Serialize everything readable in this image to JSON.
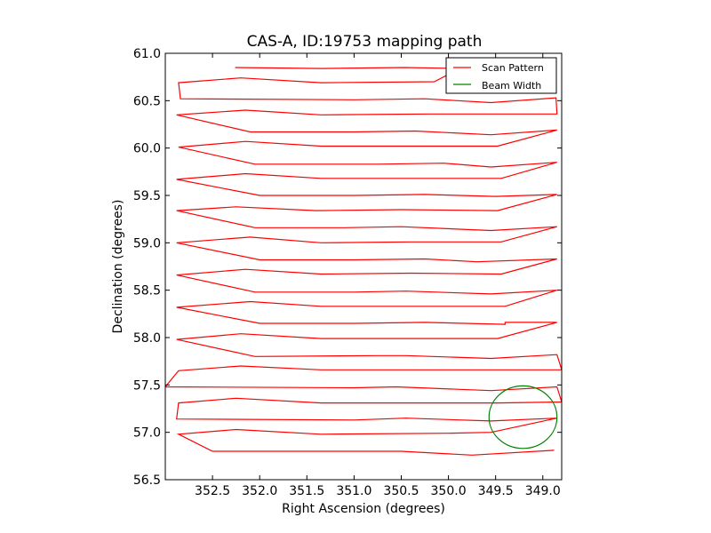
{
  "chart_data": {
    "type": "line",
    "title": "CAS-A, ID:19753 mapping path",
    "xlabel": "Right Ascension (degrees)",
    "ylabel": "Declination (degrees)",
    "xlim": [
      353.0,
      348.8
    ],
    "ylim": [
      56.5,
      61.0
    ],
    "x_inverted": true,
    "xticks": [
      352.5,
      352.0,
      351.5,
      351.0,
      350.5,
      350.0,
      349.5,
      349.0
    ],
    "xtick_labels": [
      "352.5",
      "352.0",
      "351.5",
      "351.0",
      "350.5",
      "350.0",
      "349.5",
      "349.0"
    ],
    "yticks": [
      56.5,
      57.0,
      57.5,
      58.0,
      58.5,
      59.0,
      59.5,
      60.0,
      60.5,
      61.0
    ],
    "ytick_labels": [
      "56.5",
      "57.0",
      "57.5",
      "58.0",
      "58.5",
      "59.0",
      "59.5",
      "60.0",
      "60.5",
      "61.0"
    ],
    "grid": false,
    "legend_position": "top-right",
    "series": [
      {
        "name": "Scan Pattern",
        "color": "#ff0000",
        "points": [
          [
            352.26,
            60.85
          ],
          [
            351.35,
            60.84
          ],
          [
            350.47,
            60.85
          ],
          [
            349.88,
            60.84
          ],
          [
            350.15,
            60.7
          ],
          [
            351.35,
            60.69
          ],
          [
            352.2,
            60.74
          ],
          [
            352.86,
            60.69
          ],
          [
            352.84,
            60.52
          ],
          [
            351.0,
            60.51
          ],
          [
            350.25,
            60.52
          ],
          [
            349.55,
            60.48
          ],
          [
            348.86,
            60.53
          ],
          [
            348.85,
            60.36
          ],
          [
            349.5,
            60.36
          ],
          [
            350.2,
            60.36
          ],
          [
            351.35,
            60.35
          ],
          [
            352.15,
            60.4
          ],
          [
            352.88,
            60.35
          ],
          [
            352.1,
            60.17
          ],
          [
            351.0,
            60.17
          ],
          [
            350.35,
            60.18
          ],
          [
            349.55,
            60.14
          ],
          [
            348.85,
            60.19
          ],
          [
            349.48,
            60.02
          ],
          [
            350.5,
            60.02
          ],
          [
            351.35,
            60.02
          ],
          [
            352.15,
            60.07
          ],
          [
            352.86,
            60.01
          ],
          [
            352.05,
            59.83
          ],
          [
            350.75,
            59.83
          ],
          [
            350.05,
            59.84
          ],
          [
            349.55,
            59.8
          ],
          [
            348.85,
            59.85
          ],
          [
            349.44,
            59.68
          ],
          [
            350.5,
            59.68
          ],
          [
            351.35,
            59.68
          ],
          [
            352.15,
            59.73
          ],
          [
            352.88,
            59.67
          ],
          [
            352.0,
            59.5
          ],
          [
            351.0,
            59.5
          ],
          [
            350.25,
            59.51
          ],
          [
            349.5,
            59.49
          ],
          [
            348.85,
            59.51
          ],
          [
            349.48,
            59.34
          ],
          [
            350.5,
            59.35
          ],
          [
            351.4,
            59.34
          ],
          [
            352.25,
            59.38
          ],
          [
            352.88,
            59.34
          ],
          [
            352.05,
            59.16
          ],
          [
            351.1,
            59.16
          ],
          [
            350.5,
            59.17
          ],
          [
            349.55,
            59.13
          ],
          [
            348.85,
            59.17
          ],
          [
            349.44,
            59.01
          ],
          [
            350.4,
            59.01
          ],
          [
            351.35,
            59.0
          ],
          [
            352.1,
            59.06
          ],
          [
            352.88,
            59.0
          ],
          [
            352.0,
            58.82
          ],
          [
            351.0,
            58.82
          ],
          [
            350.25,
            58.83
          ],
          [
            349.7,
            58.8
          ],
          [
            348.85,
            58.83
          ],
          [
            349.44,
            58.67
          ],
          [
            350.4,
            58.68
          ],
          [
            351.35,
            58.67
          ],
          [
            352.15,
            58.72
          ],
          [
            352.88,
            58.66
          ],
          [
            352.05,
            58.48
          ],
          [
            351.0,
            58.48
          ],
          [
            350.45,
            58.49
          ],
          [
            349.55,
            58.46
          ],
          [
            348.85,
            58.5
          ],
          [
            349.4,
            58.33
          ],
          [
            350.4,
            58.33
          ],
          [
            351.35,
            58.33
          ],
          [
            352.1,
            58.38
          ],
          [
            352.88,
            58.32
          ],
          [
            352.0,
            58.15
          ],
          [
            351.0,
            58.15
          ],
          [
            350.25,
            58.16
          ],
          [
            349.4,
            58.14
          ],
          [
            349.4,
            58.16
          ],
          [
            348.85,
            58.16
          ],
          [
            349.48,
            57.99
          ],
          [
            350.5,
            57.99
          ],
          [
            351.35,
            57.99
          ],
          [
            352.2,
            58.04
          ],
          [
            352.88,
            57.98
          ],
          [
            352.05,
            57.8
          ],
          [
            350.75,
            57.81
          ],
          [
            350.45,
            57.81
          ],
          [
            349.55,
            57.78
          ],
          [
            348.85,
            57.82
          ],
          [
            348.8,
            57.66
          ],
          [
            349.5,
            57.66
          ],
          [
            350.5,
            57.66
          ],
          [
            351.35,
            57.66
          ],
          [
            352.2,
            57.7
          ],
          [
            352.86,
            57.65
          ],
          [
            353.0,
            57.48
          ],
          [
            351.0,
            57.47
          ],
          [
            350.55,
            57.48
          ],
          [
            349.55,
            57.44
          ],
          [
            348.85,
            57.48
          ],
          [
            348.8,
            57.32
          ],
          [
            349.48,
            57.31
          ],
          [
            350.5,
            57.31
          ],
          [
            351.35,
            57.31
          ],
          [
            352.25,
            57.36
          ],
          [
            352.86,
            57.31
          ],
          [
            352.88,
            57.14
          ],
          [
            351.0,
            57.13
          ],
          [
            350.45,
            57.15
          ],
          [
            349.55,
            57.12
          ],
          [
            348.85,
            57.15
          ],
          [
            349.55,
            57.0
          ],
          [
            350.0,
            56.99
          ],
          [
            351.35,
            56.98
          ],
          [
            352.25,
            57.03
          ],
          [
            352.86,
            56.98
          ],
          [
            352.5,
            56.8
          ],
          [
            351.5,
            56.8
          ],
          [
            350.5,
            56.8
          ],
          [
            349.75,
            56.76
          ],
          [
            348.88,
            56.81
          ]
        ]
      },
      {
        "name": "Beam Width",
        "color": "#008000",
        "shape": "circle",
        "center": [
          349.21,
          57.16
        ],
        "radius_ra": 0.36,
        "radius_dec": 0.33
      }
    ]
  }
}
